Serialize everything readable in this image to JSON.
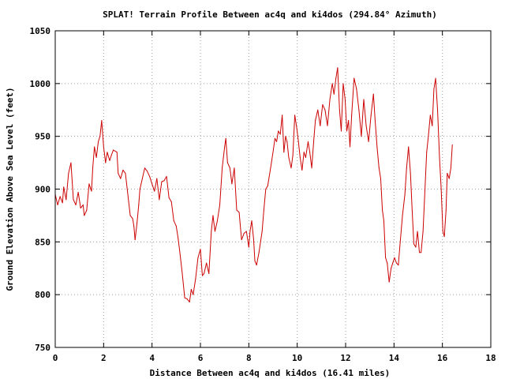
{
  "chart_data": {
    "type": "line",
    "title": "SPLAT! Terrain Profile Between ac4q and ki4dos (294.84° Azimuth)",
    "xlabel": "Distance Between ac4q and ki4dos (16.41 miles)",
    "ylabel": "Ground Elevation Above Sea Level (feet)",
    "xlim": [
      0,
      18
    ],
    "ylim": [
      750,
      1050
    ],
    "xticks": [
      0,
      2,
      4,
      6,
      8,
      10,
      12,
      14,
      16,
      18
    ],
    "yticks": [
      750,
      800,
      850,
      900,
      950,
      1000,
      1050
    ],
    "grid": true,
    "line_color": "#cc0000",
    "series": [
      {
        "values": [
          [
            0.0,
            895
          ],
          [
            0.1,
            885
          ],
          [
            0.2,
            893
          ],
          [
            0.3,
            887
          ],
          [
            0.35,
            902
          ],
          [
            0.45,
            890
          ],
          [
            0.55,
            915
          ],
          [
            0.65,
            925
          ],
          [
            0.75,
            890
          ],
          [
            0.85,
            885
          ],
          [
            0.95,
            897
          ],
          [
            1.05,
            882
          ],
          [
            1.15,
            885
          ],
          [
            1.2,
            875
          ],
          [
            1.3,
            880
          ],
          [
            1.4,
            905
          ],
          [
            1.5,
            898
          ],
          [
            1.55,
            920
          ],
          [
            1.62,
            940
          ],
          [
            1.7,
            930
          ],
          [
            1.78,
            945
          ],
          [
            1.85,
            950
          ],
          [
            1.92,
            965
          ],
          [
            2.0,
            940
          ],
          [
            2.08,
            925
          ],
          [
            2.15,
            935
          ],
          [
            2.25,
            927
          ],
          [
            2.32,
            932
          ],
          [
            2.4,
            937
          ],
          [
            2.55,
            935
          ],
          [
            2.6,
            915
          ],
          [
            2.7,
            910
          ],
          [
            2.8,
            918
          ],
          [
            2.9,
            915
          ],
          [
            3.0,
            895
          ],
          [
            3.1,
            875
          ],
          [
            3.2,
            872
          ],
          [
            3.25,
            865
          ],
          [
            3.3,
            852
          ],
          [
            3.38,
            868
          ],
          [
            3.45,
            885
          ],
          [
            3.5,
            900
          ],
          [
            3.6,
            910
          ],
          [
            3.7,
            920
          ],
          [
            3.8,
            917
          ],
          [
            3.9,
            912
          ],
          [
            4.0,
            905
          ],
          [
            4.1,
            898
          ],
          [
            4.2,
            910
          ],
          [
            4.3,
            890
          ],
          [
            4.4,
            907
          ],
          [
            4.5,
            908
          ],
          [
            4.6,
            912
          ],
          [
            4.7,
            892
          ],
          [
            4.8,
            888
          ],
          [
            4.9,
            870
          ],
          [
            5.0,
            865
          ],
          [
            5.08,
            853
          ],
          [
            5.15,
            840
          ],
          [
            5.25,
            820
          ],
          [
            5.35,
            797
          ],
          [
            5.45,
            796
          ],
          [
            5.55,
            793
          ],
          [
            5.62,
            805
          ],
          [
            5.7,
            800
          ],
          [
            5.8,
            815
          ],
          [
            5.9,
            835
          ],
          [
            6.0,
            843
          ],
          [
            6.08,
            818
          ],
          [
            6.15,
            820
          ],
          [
            6.25,
            830
          ],
          [
            6.35,
            820
          ],
          [
            6.45,
            860
          ],
          [
            6.52,
            875
          ],
          [
            6.6,
            860
          ],
          [
            6.7,
            870
          ],
          [
            6.8,
            885
          ],
          [
            6.9,
            920
          ],
          [
            7.0,
            940
          ],
          [
            7.05,
            948
          ],
          [
            7.12,
            925
          ],
          [
            7.22,
            920
          ],
          [
            7.3,
            905
          ],
          [
            7.4,
            920
          ],
          [
            7.5,
            880
          ],
          [
            7.6,
            878
          ],
          [
            7.7,
            852
          ],
          [
            7.8,
            858
          ],
          [
            7.9,
            860
          ],
          [
            8.0,
            845
          ],
          [
            8.05,
            860
          ],
          [
            8.12,
            870
          ],
          [
            8.2,
            852
          ],
          [
            8.25,
            832
          ],
          [
            8.32,
            828
          ],
          [
            8.42,
            840
          ],
          [
            8.55,
            860
          ],
          [
            8.62,
            880
          ],
          [
            8.7,
            900
          ],
          [
            8.78,
            903
          ],
          [
            8.9,
            920
          ],
          [
            9.0,
            935
          ],
          [
            9.08,
            948
          ],
          [
            9.15,
            945
          ],
          [
            9.22,
            955
          ],
          [
            9.3,
            952
          ],
          [
            9.38,
            970
          ],
          [
            9.45,
            935
          ],
          [
            9.52,
            950
          ],
          [
            9.58,
            945
          ],
          [
            9.65,
            930
          ],
          [
            9.75,
            920
          ],
          [
            9.82,
            932
          ],
          [
            9.9,
            970
          ],
          [
            9.98,
            958
          ],
          [
            10.05,
            945
          ],
          [
            10.12,
            930
          ],
          [
            10.2,
            918
          ],
          [
            10.28,
            935
          ],
          [
            10.35,
            930
          ],
          [
            10.45,
            945
          ],
          [
            10.52,
            935
          ],
          [
            10.6,
            920
          ],
          [
            10.68,
            945
          ],
          [
            10.75,
            965
          ],
          [
            10.85,
            975
          ],
          [
            10.95,
            960
          ],
          [
            11.05,
            980
          ],
          [
            11.15,
            975
          ],
          [
            11.25,
            960
          ],
          [
            11.35,
            985
          ],
          [
            11.45,
            1000
          ],
          [
            11.52,
            990
          ],
          [
            11.6,
            1005
          ],
          [
            11.67,
            1015
          ],
          [
            11.75,
            975
          ],
          [
            11.82,
            955
          ],
          [
            11.9,
            1000
          ],
          [
            11.98,
            985
          ],
          [
            12.05,
            955
          ],
          [
            12.12,
            965
          ],
          [
            12.18,
            940
          ],
          [
            12.25,
            970
          ],
          [
            12.35,
            1005
          ],
          [
            12.45,
            995
          ],
          [
            12.55,
            975
          ],
          [
            12.65,
            950
          ],
          [
            12.75,
            985
          ],
          [
            12.85,
            960
          ],
          [
            12.95,
            945
          ],
          [
            13.05,
            970
          ],
          [
            13.15,
            990
          ],
          [
            13.22,
            965
          ],
          [
            13.3,
            940
          ],
          [
            13.38,
            920
          ],
          [
            13.45,
            910
          ],
          [
            13.52,
            880
          ],
          [
            13.58,
            870
          ],
          [
            13.65,
            835
          ],
          [
            13.72,
            830
          ],
          [
            13.8,
            812
          ],
          [
            13.88,
            825
          ],
          [
            13.95,
            830
          ],
          [
            14.02,
            835
          ],
          [
            14.1,
            830
          ],
          [
            14.18,
            828
          ],
          [
            14.25,
            848
          ],
          [
            14.35,
            875
          ],
          [
            14.45,
            895
          ],
          [
            14.52,
            920
          ],
          [
            14.6,
            940
          ],
          [
            14.68,
            915
          ],
          [
            14.75,
            880
          ],
          [
            14.82,
            848
          ],
          [
            14.9,
            845
          ],
          [
            14.97,
            860
          ],
          [
            15.05,
            840
          ],
          [
            15.12,
            840
          ],
          [
            15.2,
            860
          ],
          [
            15.28,
            900
          ],
          [
            15.35,
            935
          ],
          [
            15.42,
            950
          ],
          [
            15.5,
            970
          ],
          [
            15.58,
            960
          ],
          [
            15.65,
            995
          ],
          [
            15.72,
            1005
          ],
          [
            15.8,
            975
          ],
          [
            15.88,
            930
          ],
          [
            15.95,
            900
          ],
          [
            16.02,
            860
          ],
          [
            16.08,
            855
          ],
          [
            16.15,
            880
          ],
          [
            16.2,
            915
          ],
          [
            16.28,
            910
          ],
          [
            16.35,
            920
          ],
          [
            16.41,
            942
          ]
        ]
      }
    ]
  }
}
